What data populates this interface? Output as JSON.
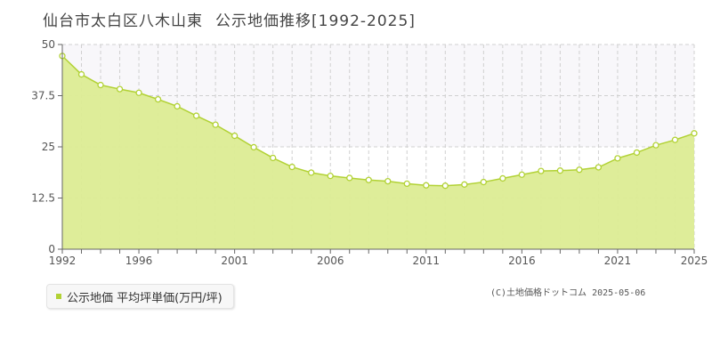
{
  "header": {
    "place": "仙台市太白区八木山東",
    "subject": "公示地価推移[1992-2025]"
  },
  "legend": {
    "label": "公示地価 平均坪単価(万円/坪)"
  },
  "footer": {
    "copyright": "(C)土地価格ドットコム 2025-05-06"
  },
  "colors": {
    "fill": "#dcec94",
    "line": "#b2d235",
    "band": "#f8f7fa",
    "grid": "#d0d0d0",
    "axis": "#666666"
  },
  "chart_data": {
    "type": "area",
    "x": [
      1992,
      1993,
      1994,
      1995,
      1996,
      1997,
      1998,
      1999,
      2000,
      2001,
      2002,
      2003,
      2004,
      2005,
      2006,
      2007,
      2008,
      2009,
      2010,
      2011,
      2012,
      2013,
      2014,
      2015,
      2016,
      2017,
      2018,
      2019,
      2020,
      2021,
      2022,
      2023,
      2024,
      2025
    ],
    "series": [
      {
        "values": [
          47.2,
          42.7,
          40.1,
          39.1,
          38.2,
          36.6,
          34.9,
          32.6,
          30.4,
          27.7,
          24.9,
          22.3,
          20.1,
          18.7,
          17.9,
          17.4,
          16.9,
          16.6,
          16.0,
          15.6,
          15.5,
          15.8,
          16.4,
          17.3,
          18.2,
          19.1,
          19.2,
          19.4,
          20.0,
          22.2,
          23.6,
          25.4,
          26.7,
          28.3
        ]
      }
    ],
    "ylim": [
      0,
      50
    ],
    "yticks": [
      0,
      12.5,
      25,
      37.5,
      50
    ],
    "ytick_labels": [
      "0",
      "12.5",
      "25",
      "37.5",
      "50"
    ],
    "xlim": [
      1992,
      2025
    ],
    "xtick_labels": [
      "1992",
      "1996",
      "2001",
      "2006",
      "2011",
      "2016",
      "2021",
      "2025"
    ],
    "grid": true,
    "legend_position": "bottom-left"
  }
}
